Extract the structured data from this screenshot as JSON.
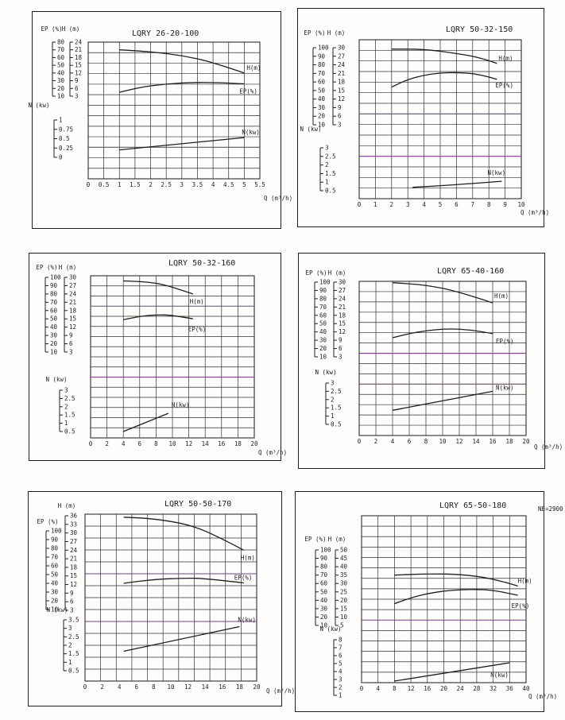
{
  "chart_data": [
    {
      "type": "line",
      "title": "LQRY 26-20-100",
      "note": "",
      "x": {
        "label": "Q (m³/h)",
        "ticks": [
          0,
          0.5,
          1,
          1.5,
          2,
          2.5,
          3,
          3.5,
          4,
          4.5,
          5,
          5.5
        ]
      },
      "axes": {
        "ep": {
          "label": "EP (%)",
          "ticks": [
            80,
            70,
            60,
            50,
            40,
            30,
            20,
            10
          ]
        },
        "h": {
          "label": "H (m)",
          "ticks": [
            24,
            21,
            18,
            15,
            12,
            9,
            6,
            3
          ]
        },
        "n": {
          "label": "N (kw)",
          "ticks": [
            1,
            0.75,
            0.5,
            0.25,
            0
          ]
        }
      },
      "series": [
        {
          "name": "H (m)",
          "axis": "h",
          "label": "H(m)",
          "points": [
            [
              1,
              21
            ],
            [
              2,
              20.3
            ],
            [
              3,
              18.8
            ],
            [
              4,
              16.2
            ],
            [
              5,
              12
            ]
          ]
        },
        {
          "name": "EP (%)",
          "axis": "ep",
          "label": "EP(%)",
          "points": [
            [
              1,
              15
            ],
            [
              1.5,
              20
            ],
            [
              2,
              23.5
            ],
            [
              3,
              27.5
            ],
            [
              4,
              28
            ],
            [
              5,
              26
            ]
          ]
        },
        {
          "name": "N (kw)",
          "axis": "n",
          "label": "N(kw)",
          "points": [
            [
              1,
              0.2
            ],
            [
              5,
              0.53
            ]
          ]
        }
      ]
    },
    {
      "type": "line",
      "title": "LQRY 50-32-150",
      "note": "",
      "x": {
        "label": "Q (m³/h)",
        "ticks": [
          0,
          1,
          2,
          3,
          4,
          5,
          6,
          7,
          8,
          9,
          10
        ]
      },
      "axes": {
        "ep": {
          "label": "EP (%)",
          "ticks": [
            100,
            90,
            80,
            70,
            60,
            50,
            40,
            30,
            20,
            10
          ]
        },
        "h": {
          "label": "H (m)",
          "ticks": [
            30,
            27,
            24,
            21,
            18,
            15,
            12,
            9,
            6,
            3
          ]
        },
        "n": {
          "label": "N (kw)",
          "ticks": [
            3,
            2.5,
            2,
            1.5,
            1,
            0.5
          ]
        }
      },
      "series": [
        {
          "name": "H (m)",
          "axis": "h",
          "label": "H(m)",
          "points": [
            [
              2,
              29.5
            ],
            [
              4,
              29.5
            ],
            [
              6,
              28
            ],
            [
              7.5,
              26.5
            ],
            [
              8.5,
              24.5
            ]
          ]
        },
        {
          "name": "EP (%)",
          "axis": "ep",
          "label": "EP(%)",
          "points": [
            [
              2,
              54
            ],
            [
              3,
              63
            ],
            [
              4,
              68
            ],
            [
              5,
              70.5
            ],
            [
              6,
              71
            ],
            [
              7,
              70
            ],
            [
              8,
              66
            ],
            [
              8.5,
              63
            ]
          ]
        },
        {
          "name": "N (kw)",
          "axis": "n",
          "label": "N(kw)",
          "points": [
            [
              3.3,
              0.7
            ],
            [
              6,
              0.85
            ],
            [
              8.8,
              1.05
            ]
          ]
        }
      ]
    },
    {
      "type": "line",
      "title": "LQRY 50-32-160",
      "note": "",
      "x": {
        "label": "Q (m³/h)",
        "ticks": [
          0,
          2,
          4,
          6,
          8,
          10,
          12,
          14,
          16,
          18,
          20
        ]
      },
      "axes": {
        "ep": {
          "label": "EP (%)",
          "ticks": [
            100,
            90,
            80,
            70,
            60,
            50,
            40,
            30,
            20,
            10
          ]
        },
        "h": {
          "label": "H (m)",
          "ticks": [
            30,
            27,
            24,
            21,
            18,
            15,
            12,
            9,
            6,
            3
          ]
        },
        "n": {
          "label": "N (kw)",
          "ticks": [
            3,
            2.5,
            2,
            1.5,
            1,
            0.5
          ]
        }
      },
      "series": [
        {
          "name": "H (m)",
          "axis": "h",
          "label": "H(m)",
          "points": [
            [
              4,
              28.7
            ],
            [
              6,
              28.5
            ],
            [
              8,
              28
            ],
            [
              10,
              26.5
            ],
            [
              12.5,
              24
            ]
          ]
        },
        {
          "name": "EP (%)",
          "axis": "ep",
          "label": "EP(%)",
          "points": [
            [
              4,
              49
            ],
            [
              6,
              53
            ],
            [
              8,
              55
            ],
            [
              10,
              54.5
            ],
            [
              12.5,
              50
            ]
          ]
        },
        {
          "name": "N (kw)",
          "axis": "n",
          "label": "N(kw)",
          "points": [
            [
              4,
              0.5
            ],
            [
              9.5,
              1.6
            ]
          ]
        }
      ]
    },
    {
      "type": "line",
      "title": "LQRY 65-40-160",
      "note": "",
      "x": {
        "label": "Q (m³/h)",
        "ticks": [
          0,
          2,
          4,
          6,
          8,
          10,
          12,
          14,
          16,
          18,
          20
        ]
      },
      "axes": {
        "ep": {
          "label": "EP (%)",
          "ticks": [
            100,
            90,
            80,
            70,
            60,
            50,
            40,
            30,
            20,
            10
          ]
        },
        "h": {
          "label": "H (m)",
          "ticks": [
            30,
            27,
            24,
            21,
            18,
            15,
            12,
            9,
            6,
            3
          ]
        },
        "n": {
          "label": "N (kw)",
          "ticks": [
            3,
            2.5,
            2,
            1.5,
            1,
            0.5
          ]
        }
      },
      "series": [
        {
          "name": "H (m)",
          "axis": "h",
          "label": "H(m)",
          "points": [
            [
              4,
              29.8
            ],
            [
              8,
              29
            ],
            [
              12,
              26.5
            ],
            [
              16,
              22.5
            ]
          ]
        },
        {
          "name": "EP (%)",
          "axis": "ep",
          "label": "EP(%)",
          "points": [
            [
              4,
              33
            ],
            [
              6,
              38
            ],
            [
              8,
              41.5
            ],
            [
              10,
              43.5
            ],
            [
              12,
              43.5
            ],
            [
              14,
              41.5
            ],
            [
              16,
              38
            ]
          ]
        },
        {
          "name": "N (kw)",
          "axis": "n",
          "label": "N(kw)",
          "points": [
            [
              4,
              1.35
            ],
            [
              16,
              2.5
            ]
          ]
        }
      ]
    },
    {
      "type": "line",
      "title": "LQRY 50-50-170",
      "note": "",
      "x": {
        "label": "Q (m³/h)",
        "ticks": [
          0,
          2,
          4,
          6,
          8,
          10,
          12,
          14,
          16,
          18,
          20
        ]
      },
      "axes": {
        "ep": {
          "label": "EP (%)",
          "ticks": [
            100,
            90,
            80,
            70,
            60,
            50,
            40,
            30,
            20,
            10
          ]
        },
        "h": {
          "label": "H (m)",
          "ticks": [
            36,
            33,
            30,
            27,
            24,
            21,
            18,
            15,
            12,
            9,
            6,
            3
          ]
        },
        "n": {
          "label": "N (kw)",
          "ticks": [
            3.5,
            3,
            2.5,
            2,
            1.5,
            1,
            0.5
          ]
        }
      },
      "series": [
        {
          "name": "H (m)",
          "axis": "h",
          "label": "H(m)",
          "points": [
            [
              4.5,
              35.5
            ],
            [
              8,
              35
            ],
            [
              12,
              33
            ],
            [
              15,
              29.5
            ],
            [
              18.5,
              24
            ]
          ]
        },
        {
          "name": "EP (%)",
          "axis": "ep",
          "label": "EP(%)",
          "points": [
            [
              4.5,
              40
            ],
            [
              8,
              44.5
            ],
            [
              12,
              46
            ],
            [
              14,
              45.5
            ],
            [
              18.5,
              40.5
            ]
          ]
        },
        {
          "name": "N (kw)",
          "axis": "n",
          "label": "N(kw)",
          "points": [
            [
              4.5,
              1.65
            ],
            [
              18,
              3.1
            ]
          ]
        }
      ]
    },
    {
      "type": "line",
      "title": "LQRY 65-50-180",
      "note": "NE=2900",
      "x": {
        "label": "Q (m³/h)",
        "ticks": [
          0,
          4,
          8,
          12,
          16,
          20,
          24,
          28,
          32,
          36,
          40
        ]
      },
      "axes": {
        "ep": {
          "label": "EP (%)",
          "ticks": [
            100,
            90,
            80,
            70,
            60,
            50,
            40,
            30,
            20,
            10
          ]
        },
        "h": {
          "label": "H (m)",
          "ticks": [
            50,
            45,
            40,
            35,
            30,
            25,
            20,
            15,
            10,
            5
          ]
        },
        "n": {
          "label": "N (kw)",
          "ticks": [
            8,
            7,
            6,
            5,
            4,
            3,
            2,
            1
          ]
        }
      },
      "series": [
        {
          "name": "H (m)",
          "axis": "h",
          "label": "H(m)",
          "points": [
            [
              8,
              35
            ],
            [
              16,
              35.8
            ],
            [
              24,
              35.5
            ],
            [
              32,
              33
            ],
            [
              38,
              28.5
            ]
          ]
        },
        {
          "name": "EP (%)",
          "axis": "ep",
          "label": "EP(%)",
          "points": [
            [
              8,
              36
            ],
            [
              12,
              43
            ],
            [
              16,
              48
            ],
            [
              20,
              51
            ],
            [
              24,
              52.5
            ],
            [
              28,
              53
            ],
            [
              32,
              52
            ],
            [
              36,
              48
            ],
            [
              38,
              46
            ]
          ]
        },
        {
          "name": "N (kw)",
          "axis": "n",
          "label": "N(kw)",
          "points": [
            [
              8,
              2.8
            ],
            [
              36,
              5.1
            ]
          ]
        }
      ]
    }
  ],
  "colors": {
    "ink": "#1e1e1e",
    "grid": "#2e2e2e",
    "accent_line": "#7b3f8c",
    "background": "#fdfdfb"
  }
}
